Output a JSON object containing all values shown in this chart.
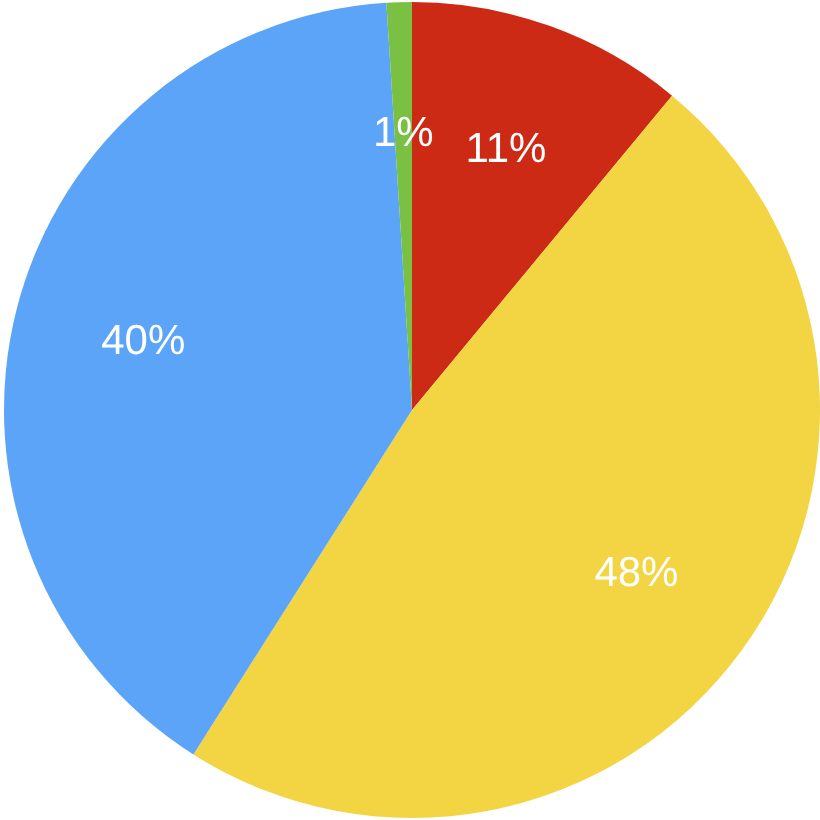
{
  "chart_data": {
    "type": "pie",
    "categories": [
      null,
      null,
      null,
      null
    ],
    "values": [
      11,
      48,
      40,
      1
    ],
    "colors": [
      "#cc2a14",
      "#f3d544",
      "#5ba4f8",
      "#7ac143"
    ],
    "value_labels": [
      "11%",
      "48%",
      "40%",
      "1%"
    ]
  }
}
